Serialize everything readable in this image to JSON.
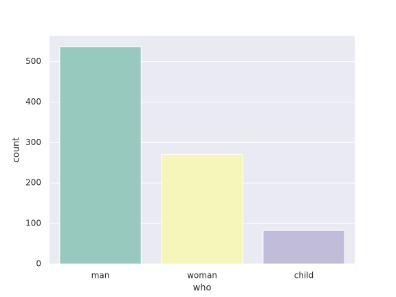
{
  "chart_data": {
    "type": "bar",
    "categories": [
      "man",
      "woman",
      "child"
    ],
    "values": [
      537,
      271,
      83
    ],
    "colors": [
      "#97c9bf",
      "#f6f6bb",
      "#c1bdd8"
    ],
    "x_label": "who",
    "y_label": "count",
    "ylim": [
      0,
      563.85
    ],
    "yticks": [
      0,
      100,
      200,
      300,
      400,
      500
    ],
    "grid": true
  }
}
